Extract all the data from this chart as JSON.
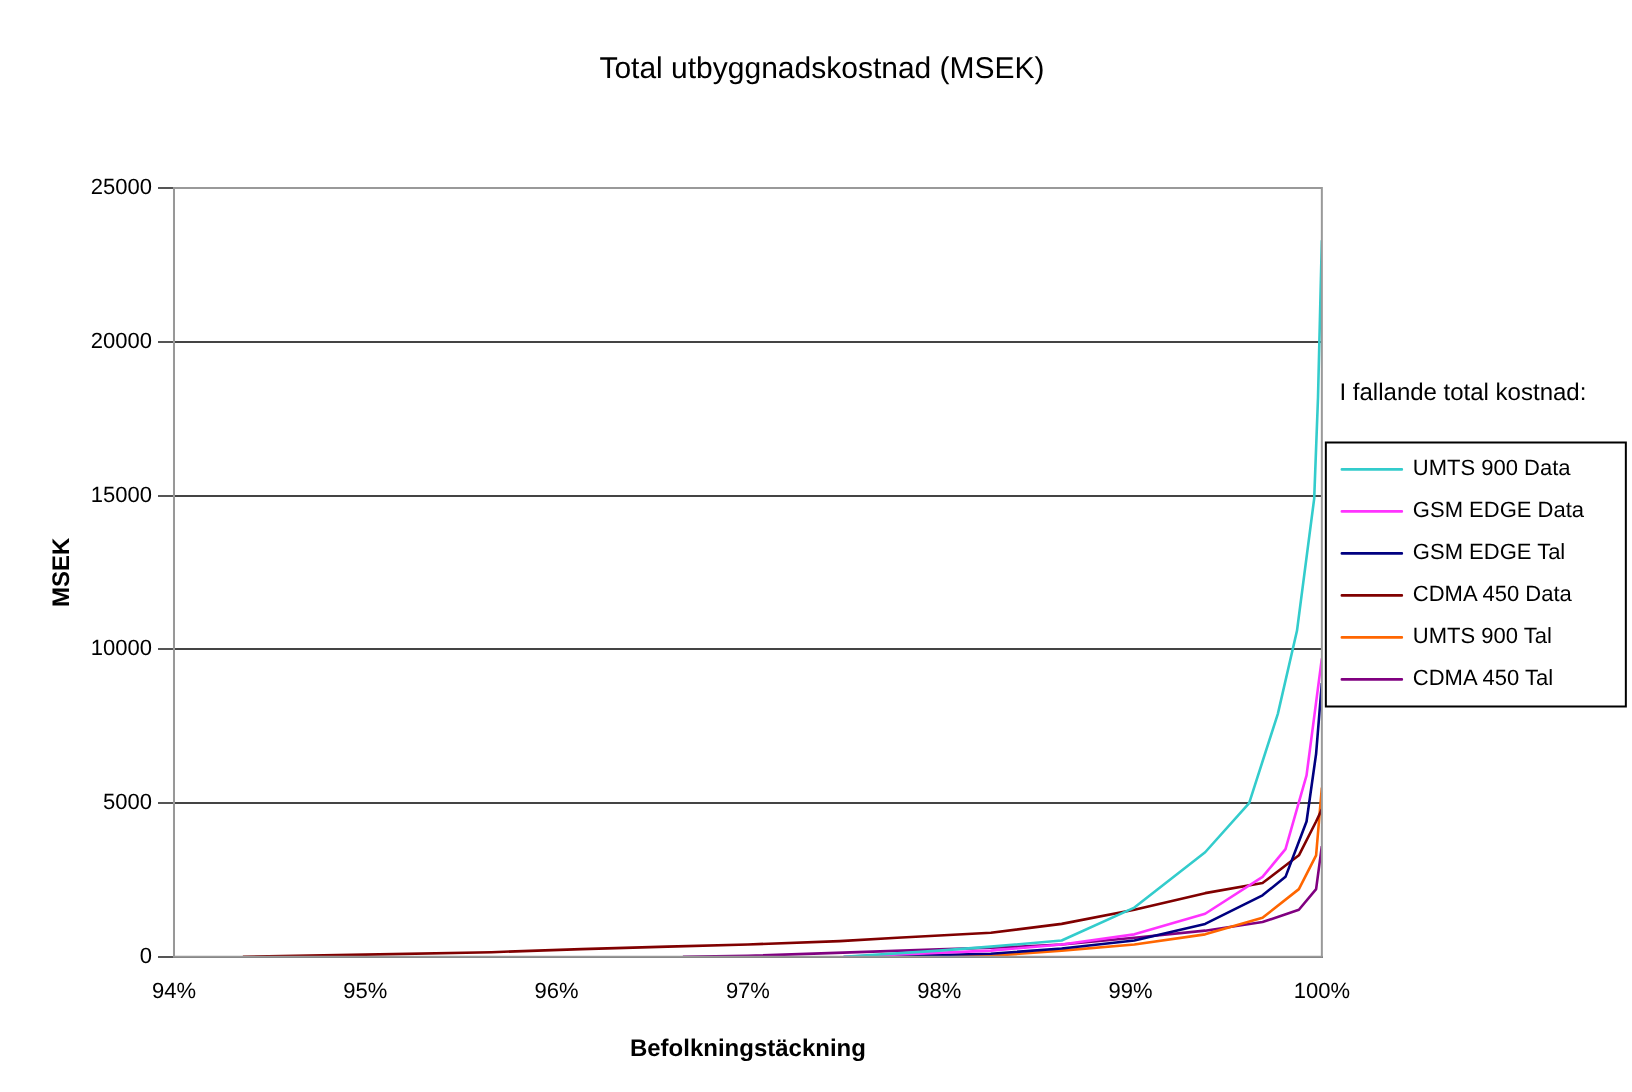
{
  "chart_data": {
    "type": "line",
    "title": "Total utbyggnadskostnad (MSEK)",
    "xlabel": "Befolkningstäckning",
    "ylabel": "MSEK",
    "legend_title": "I fallande total kostnad:",
    "legend": "right",
    "grid": "y",
    "marker": "none",
    "line_style": "solid",
    "xlim": [
      94,
      100
    ],
    "xticks": [
      {
        "value": 94,
        "label": "94%"
      },
      {
        "value": 95,
        "label": "95%"
      },
      {
        "value": 96,
        "label": "96%"
      },
      {
        "value": 97,
        "label": "97%"
      },
      {
        "value": 98,
        "label": "98%"
      },
      {
        "value": 99,
        "label": "99%"
      },
      {
        "value": 100,
        "label": "100%"
      }
    ],
    "ylim": [
      0,
      25000
    ],
    "yticks": [
      0,
      5000,
      10000,
      15000,
      20000,
      25000
    ],
    "series": [
      {
        "name": "UMTS 900 Data",
        "color": "#33cccc",
        "x": [
          97.5,
          98,
          98.27,
          98.64,
          99.02,
          99.39,
          99.62,
          99.77,
          99.87,
          99.96,
          99.98,
          100
        ],
        "values": [
          0,
          200,
          330,
          530,
          1600,
          3400,
          5000,
          7900,
          10600,
          14900,
          18200,
          23300
        ]
      },
      {
        "name": "GSM EDGE Data",
        "color": "#ff33ff",
        "x": [
          97.5,
          98.27,
          98.64,
          99.02,
          99.39,
          99.69,
          99.81,
          99.92,
          100
        ],
        "values": [
          0,
          200,
          400,
          730,
          1400,
          2600,
          3500,
          5900,
          9700
        ]
      },
      {
        "name": "GSM EDGE Tal",
        "color": "#000080",
        "x": [
          97.6,
          98.27,
          98.64,
          99.02,
          99.39,
          99.69,
          99.81,
          99.92,
          99.97,
          100
        ],
        "values": [
          0,
          100,
          270,
          530,
          1070,
          2000,
          2600,
          4400,
          6600,
          8900
        ]
      },
      {
        "name": "CDMA 450 Data",
        "color": "#800000",
        "x": [
          94.36,
          95,
          95.66,
          96.13,
          96.58,
          97,
          97.48,
          97.78,
          98.27,
          98.64,
          99.02,
          99.39,
          99.69,
          99.88,
          99.97,
          100
        ],
        "values": [
          0,
          70,
          150,
          250,
          330,
          400,
          510,
          620,
          780,
          1070,
          1530,
          2070,
          2400,
          3300,
          4400,
          4800
        ]
      },
      {
        "name": "UMTS 900 Tal",
        "color": "#ff6600",
        "x": [
          98,
          98.27,
          98.64,
          99.02,
          99.39,
          99.69,
          99.88,
          99.97,
          100
        ],
        "values": [
          0,
          30,
          200,
          400,
          730,
          1270,
          2200,
          3300,
          5500
        ]
      },
      {
        "name": "CDMA 450 Tal",
        "color": "#800080",
        "x": [
          96.66,
          97,
          98,
          98.38,
          98.64,
          99.02,
          99.39,
          99.69,
          99.88,
          99.97,
          100
        ],
        "values": [
          0,
          30,
          240,
          320,
          400,
          620,
          850,
          1130,
          1530,
          2200,
          3600
        ]
      }
    ]
  }
}
